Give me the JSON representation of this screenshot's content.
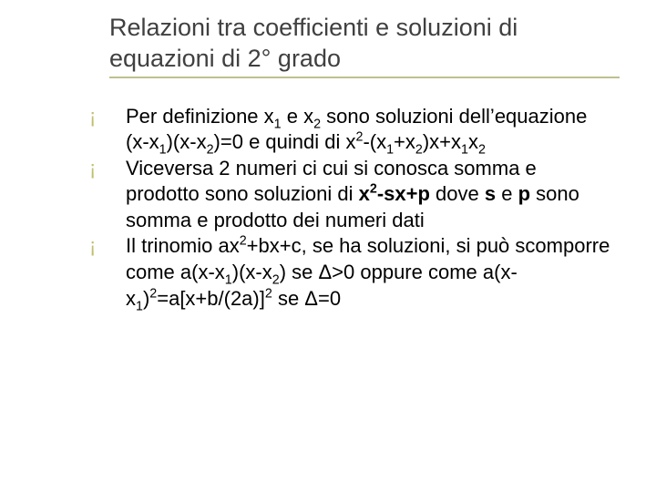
{
  "slide": {
    "background_color": "#ffffff",
    "title": {
      "text": "Relazioni tra coefficienti e soluzioni di equazioni di 2° grado",
      "color": "#404040",
      "fontsize": 27,
      "underline_color": "#bfbf8f"
    },
    "bullet_style": {
      "marker": "¡",
      "marker_color": "#bfbf6f",
      "text_color": "#000000",
      "fontsize": 22
    },
    "bullets": [
      {
        "segments": [
          {
            "t": "Per definizione x"
          },
          {
            "t": "1",
            "sub": true
          },
          {
            "t": " e x"
          },
          {
            "t": "2",
            "sub": true
          },
          {
            "t": " sono soluzioni dell’equazione\n(x-x"
          },
          {
            "t": "1",
            "sub": true
          },
          {
            "t": ")(x-x"
          },
          {
            "t": "2",
            "sub": true
          },
          {
            "t": ")=0 e quindi di x"
          },
          {
            "t": "2",
            "sup": true
          },
          {
            "t": "-(x"
          },
          {
            "t": "1",
            "sub": true
          },
          {
            "t": "+x"
          },
          {
            "t": "2",
            "sub": true
          },
          {
            "t": ")x+x"
          },
          {
            "t": "1",
            "sub": true
          },
          {
            "t": "x"
          },
          {
            "t": "2",
            "sub": true
          }
        ]
      },
      {
        "segments": [
          {
            "t": "Viceversa 2 numeri ci cui si conosca  somma e prodotto sono soluzioni di "
          },
          {
            "t": "x",
            "b": true
          },
          {
            "t": "2",
            "sup": true,
            "b": true
          },
          {
            "t": "-sx+p",
            "b": true
          },
          {
            "t": " dove "
          },
          {
            "t": "s",
            "b": true
          },
          {
            "t": " e "
          },
          {
            "t": "p",
            "b": true
          },
          {
            "t": " sono somma e prodotto dei numeri dati"
          }
        ]
      },
      {
        "segments": [
          {
            "t": "Il trinomio ax"
          },
          {
            "t": "2",
            "sup": true
          },
          {
            "t": "+bx+c, se ha soluzioni, si può scomporre come a(x-x"
          },
          {
            "t": "1",
            "sub": true
          },
          {
            "t": ")(x-x"
          },
          {
            "t": "2",
            "sub": true
          },
          {
            "t": ") se Δ>0 oppure come a(x-x"
          },
          {
            "t": "1",
            "sub": true
          },
          {
            "t": ")"
          },
          {
            "t": "2",
            "sup": true
          },
          {
            "t": "=a[x+b/(2a)]"
          },
          {
            "t": "2",
            "sup": true
          },
          {
            "t": " se Δ=0"
          }
        ]
      }
    ]
  }
}
